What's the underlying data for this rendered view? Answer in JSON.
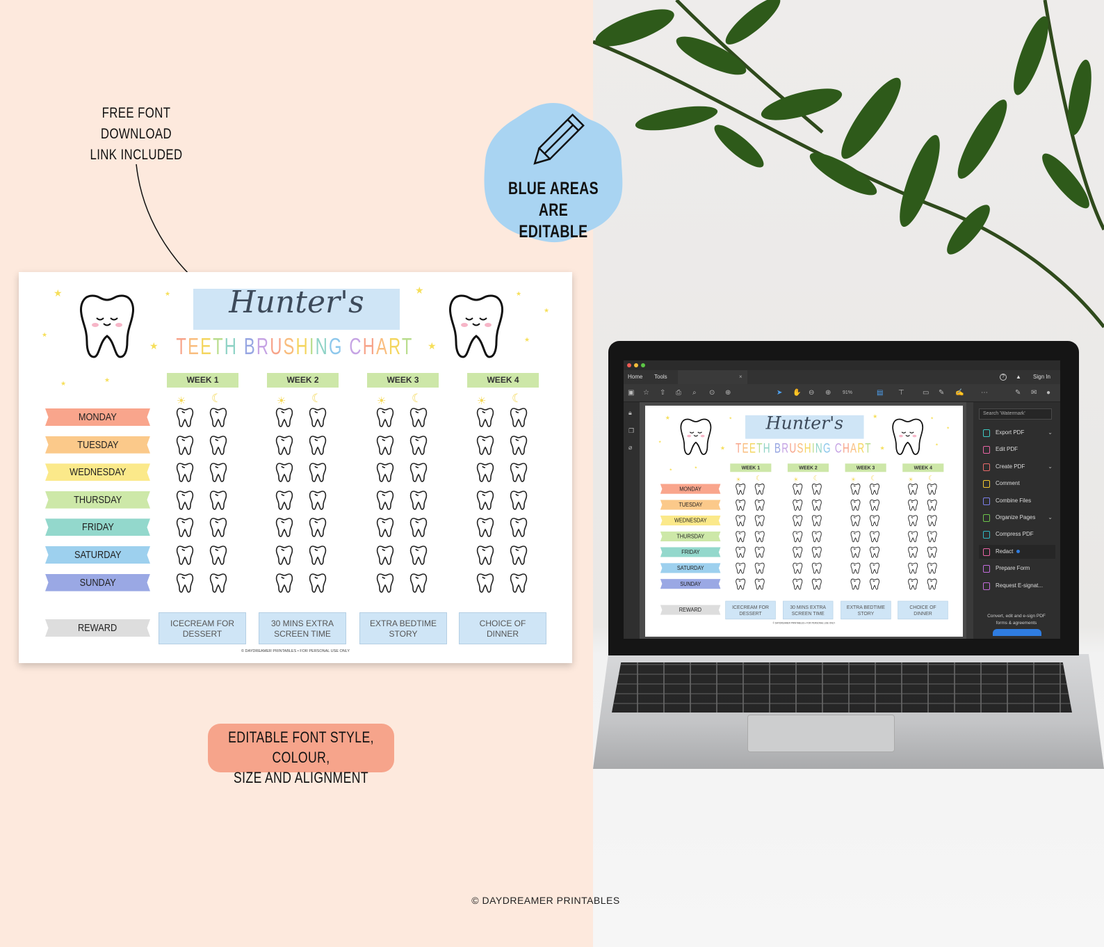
{
  "annotations": {
    "font_note": [
      "FREE FONT DOWNLOAD",
      "LINK INCLUDED"
    ],
    "editable_badge": [
      "BLUE AREAS ARE",
      "EDITABLE"
    ],
    "editable_badge_icon": "pencil-icon",
    "style_note": [
      "EDITABLE FONT STYLE, COLOUR,",
      "SIZE AND ALIGNMENT"
    ],
    "copyright": "© DAYDREAMER PRINTABLES"
  },
  "colors": {
    "background_left": "#fde9dd",
    "editable_blue": "#cfe5f6",
    "badge_blue": "#a9d4f2",
    "pill_salmon": "#f6a48b",
    "week_green": "#cde7a8"
  },
  "chart": {
    "name": "Hunter's",
    "subtitle": "TEETH BRUSHING CHART",
    "subtitle_colors": [
      "#f7a48a",
      "#f9bd7e",
      "#f4d65f",
      "#b9dd8e",
      "#8fd3c6",
      "#8ec8ec",
      "#97a6e2",
      "#c6a4e4"
    ],
    "weeks": [
      "WEEK 1",
      "WEEK 2",
      "WEEK 3",
      "WEEK 4"
    ],
    "session_icons": [
      "sun-icon",
      "moon-icon"
    ],
    "days": [
      {
        "label": "MONDAY",
        "color": "#f9a58c"
      },
      {
        "label": "TUESDAY",
        "color": "#fbc98a"
      },
      {
        "label": "WEDNESDAY",
        "color": "#fbe98a"
      },
      {
        "label": "THURSDAY",
        "color": "#cde8a8"
      },
      {
        "label": "FRIDAY",
        "color": "#93d8cc"
      },
      {
        "label": "SATURDAY",
        "color": "#9dd0ee"
      },
      {
        "label": "SUNDAY",
        "color": "#9aa8e4"
      }
    ],
    "reward_label": "REWARD",
    "reward_color": "#dddddd",
    "rewards": [
      [
        "ICECREAM FOR",
        "DESSERT"
      ],
      [
        "30 MINS EXTRA",
        "SCREEN TIME"
      ],
      [
        "EXTRA BEDTIME",
        "STORY"
      ],
      [
        "CHOICE OF",
        "DINNER"
      ]
    ],
    "footer": "© DAYDREAMER PRINTABLES • FOR PERSONAL USE ONLY"
  },
  "acrobat": {
    "tabs": [
      "Home",
      "Tools"
    ],
    "tab_close": "×",
    "help_icon": "?",
    "sign_in": "Sign In",
    "zoom": "91%",
    "search_placeholder": "Search 'Watermark'",
    "tools": [
      {
        "label": "Export PDF",
        "color": "#3ec7c0",
        "expand": true
      },
      {
        "label": "Edit PDF",
        "color": "#e763a3",
        "expand": false
      },
      {
        "label": "Create PDF",
        "color": "#e86a6a",
        "expand": true
      },
      {
        "label": "Comment",
        "color": "#f2c62e",
        "expand": false
      },
      {
        "label": "Combine Files",
        "color": "#7b7fe8",
        "expand": false
      },
      {
        "label": "Organize Pages",
        "color": "#6cc34a",
        "expand": true
      },
      {
        "label": "Compress PDF",
        "color": "#2fb7c4",
        "expand": false
      },
      {
        "label": "Redact",
        "color": "#e763a3",
        "expand": false,
        "selected": true
      },
      {
        "label": "Prepare Form",
        "color": "#c26bdb",
        "expand": false
      },
      {
        "label": "Request E-signat...",
        "color": "#c26bdb",
        "expand": false
      }
    ],
    "promo": [
      "Convert, edit and e-sign PDF",
      "forms & agreements"
    ]
  }
}
